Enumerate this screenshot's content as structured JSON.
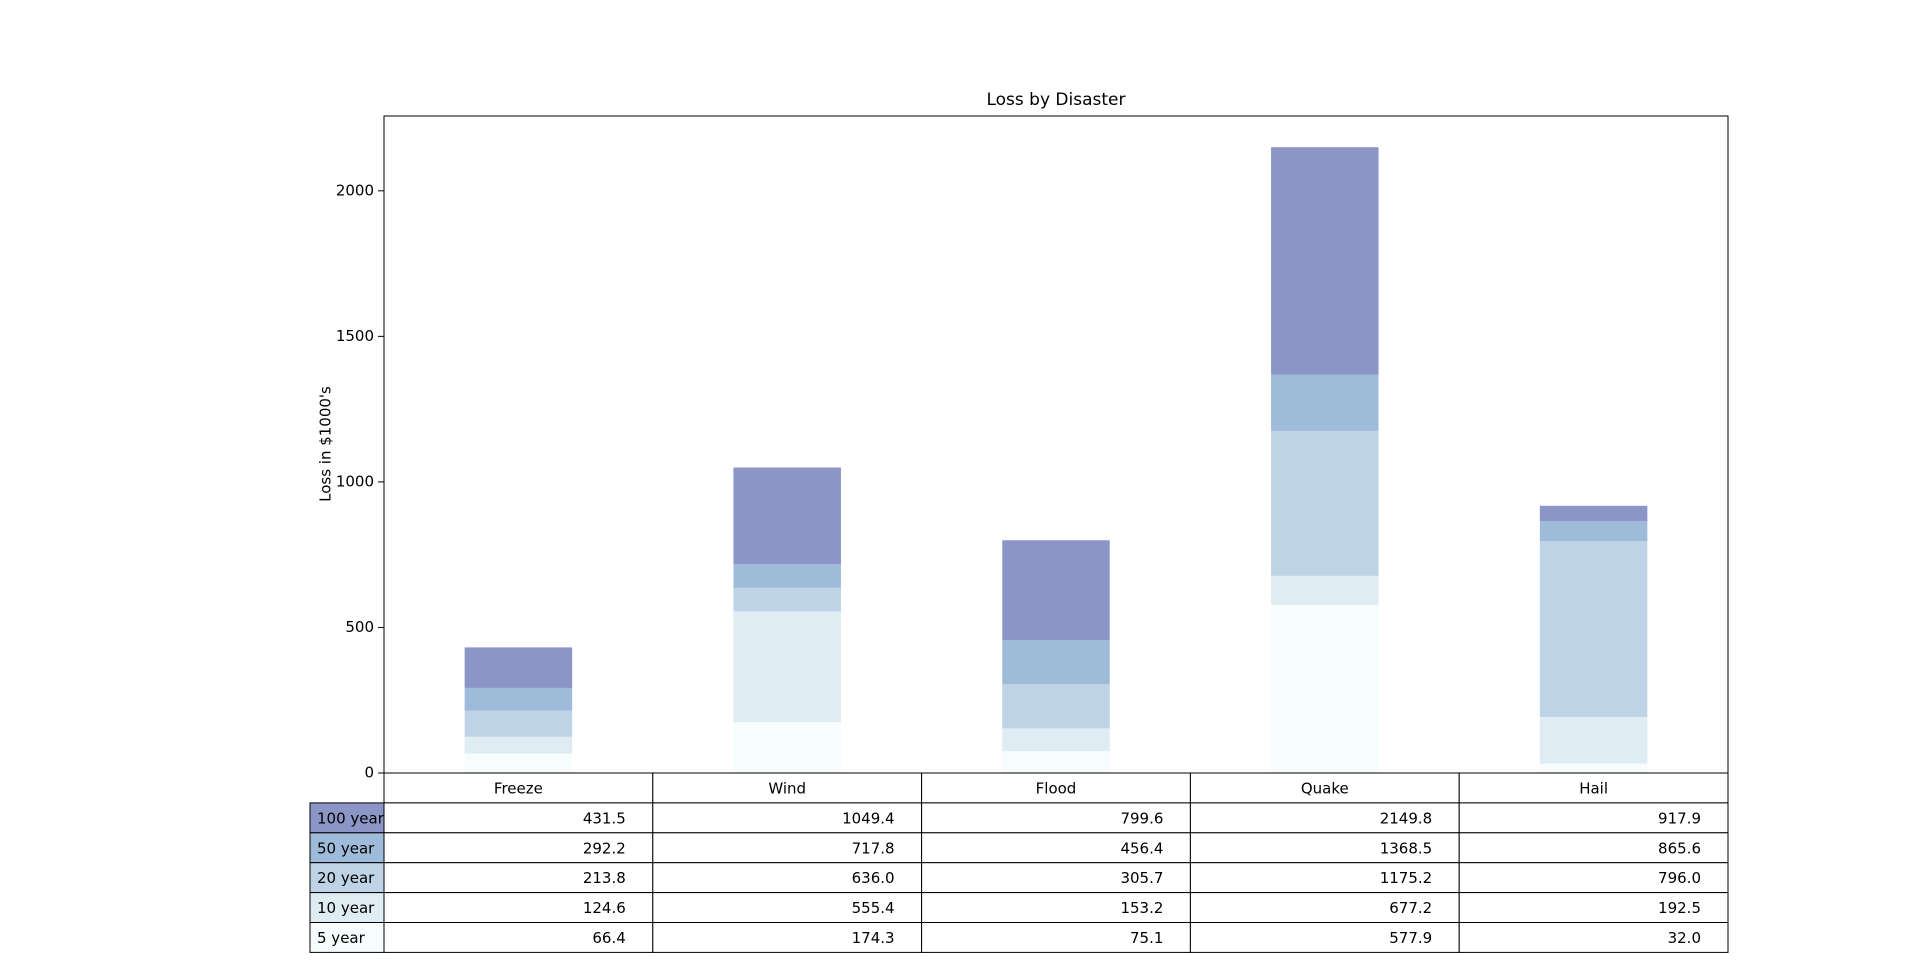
{
  "chart_data": {
    "type": "stacked-bar",
    "title": "Loss by Disaster",
    "y_label": "Loss in $1000's",
    "categories": [
      "Freeze",
      "Wind",
      "Flood",
      "Quake",
      "Hail"
    ],
    "series": [
      {
        "name": "5 year",
        "color": "#f7fcfd",
        "values": [
          66.4,
          174.3,
          75.1,
          577.9,
          32.0
        ]
      },
      {
        "name": "10 year",
        "color": "#e0ecf4",
        "values": [
          58.2,
          381.1,
          78.1,
          99.3,
          160.5
        ]
      },
      {
        "name": "20 year",
        "color": "#bfd3e6",
        "values": [
          89.2,
          80.6,
          152.5,
          498.0,
          603.5
        ]
      },
      {
        "name": "50 year",
        "color": "#9ebcda",
        "values": [
          78.4,
          81.8,
          150.7,
          193.3,
          69.6
        ]
      },
      {
        "name": "100 year",
        "color": "#8c96c6",
        "values": [
          139.3,
          331.6,
          343.2,
          781.3,
          52.3
        ]
      }
    ],
    "table_cells": [
      [
        "66.4",
        "174.3",
        "75.1",
        "577.9",
        "32.0"
      ],
      [
        "124.6",
        "555.4",
        "153.2",
        "677.2",
        "192.5"
      ],
      [
        "213.8",
        "636.0",
        "305.7",
        "1175.2",
        "796.0"
      ],
      [
        "292.2",
        "717.8",
        "456.4",
        "1368.5",
        "865.6"
      ],
      [
        "431.5",
        "1049.4",
        "799.6",
        "2149.8",
        "917.9"
      ]
    ],
    "ylim": [
      0,
      2257
    ],
    "yticks": [
      0,
      500,
      1000,
      1500,
      2000
    ]
  }
}
